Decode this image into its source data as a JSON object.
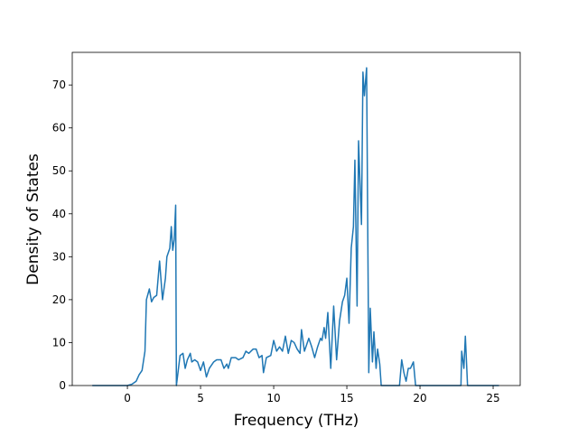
{
  "chart_data": {
    "type": "line",
    "xlabel": "Frequency (THz)",
    "ylabel": "Density of States",
    "color": "#1f77b4",
    "xlim": [
      -3.77,
      26.85
    ],
    "ylim": [
      0,
      77.6
    ],
    "xticks": [
      0,
      5,
      10,
      15,
      20,
      25
    ],
    "yticks": [
      0,
      10,
      20,
      30,
      40,
      50,
      60,
      70
    ],
    "x": [
      -2.4,
      -0.2,
      0,
      0.3,
      0.6,
      0.8,
      1.0,
      1.2,
      1.3,
      1.5,
      1.65,
      1.8,
      2.0,
      2.2,
      2.4,
      2.6,
      2.7,
      2.9,
      3.0,
      3.1,
      3.2,
      3.3,
      3.35,
      3.6,
      3.8,
      3.95,
      4.1,
      4.3,
      4.4,
      4.6,
      4.8,
      5.0,
      5.2,
      5.4,
      5.6,
      5.9,
      6.1,
      6.4,
      6.6,
      6.8,
      6.9,
      7.1,
      7.4,
      7.6,
      7.9,
      8.1,
      8.3,
      8.6,
      8.8,
      9.0,
      9.2,
      9.3,
      9.5,
      9.8,
      10.0,
      10.2,
      10.4,
      10.6,
      10.8,
      11.0,
      11.2,
      11.4,
      11.6,
      11.8,
      11.9,
      12.1,
      12.4,
      12.6,
      12.8,
      13.0,
      13.2,
      13.3,
      13.45,
      13.55,
      13.7,
      13.9,
      14.1,
      14.3,
      14.5,
      14.7,
      14.85,
      15.0,
      15.15,
      15.3,
      15.45,
      15.55,
      15.7,
      15.8,
      16.0,
      16.1,
      16.2,
      16.35,
      16.5,
      16.6,
      16.75,
      16.85,
      17.0,
      17.1,
      17.25,
      17.35,
      18.6,
      18.75,
      18.9,
      19.05,
      19.2,
      19.35,
      19.55,
      19.7,
      22.8,
      22.85,
      23.0,
      23.1,
      23.25,
      25.4
    ],
    "values": [
      0,
      0,
      0,
      0.3,
      1,
      2.5,
      3.5,
      8,
      20,
      22.5,
      19.5,
      20.5,
      21,
      29,
      20,
      25,
      30,
      32,
      37,
      31.5,
      34,
      42,
      0,
      7,
      7.5,
      4,
      6,
      7.5,
      5.5,
      6,
      5.5,
      3.5,
      5.5,
      2,
      4,
      5.5,
      6,
      6,
      4,
      5,
      4,
      6.5,
      6.5,
      6,
      6.5,
      8,
      7.5,
      8.5,
      8.5,
      6.5,
      7,
      3,
      6.5,
      7,
      10.5,
      8,
      9,
      8,
      11.5,
      7.5,
      10.5,
      10,
      8.5,
      7.5,
      13,
      8,
      11,
      9,
      6.5,
      9,
      11,
      10.5,
      13.5,
      11,
      17,
      4,
      18.5,
      6,
      15,
      19.5,
      21,
      25,
      14.5,
      32,
      37,
      52.5,
      18.5,
      57,
      37.5,
      73,
      67.5,
      74,
      3,
      18,
      5.5,
      12.5,
      4,
      8.5,
      5,
      0,
      0,
      6,
      3,
      1,
      4,
      4,
      5.5,
      0,
      0,
      8,
      4,
      11.5,
      0,
      0
    ]
  }
}
